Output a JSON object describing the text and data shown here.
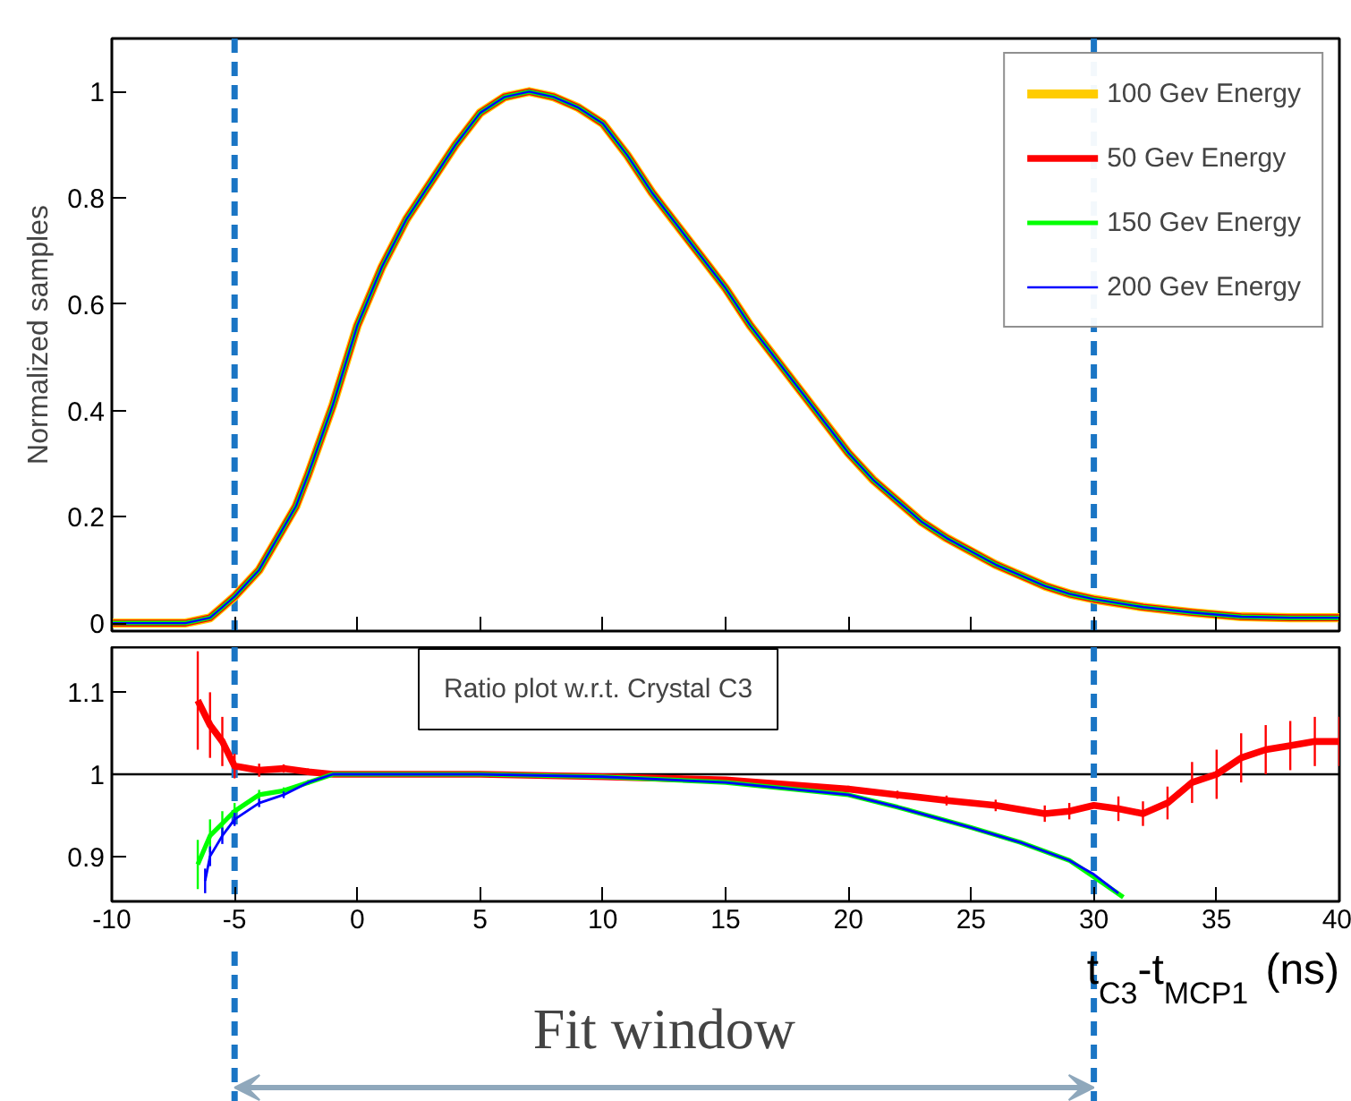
{
  "chart_data": [
    {
      "type": "line",
      "ylabel": "Normalized samples",
      "legend": "top right",
      "tick_labels": "y",
      "grid": false,
      "xlim": [
        -10,
        40
      ],
      "xticks": [
        -10,
        -5,
        0,
        5,
        10,
        15,
        20,
        25,
        30,
        35,
        40
      ],
      "ylim": [
        -0.015,
        1.1
      ],
      "yticks": [
        0,
        0.2,
        0.4,
        0.6,
        0.8,
        1
      ],
      "x": [
        -10,
        -8,
        -7,
        -6,
        -5.5,
        -5,
        -4,
        -3,
        -2.5,
        -2,
        -1,
        0,
        1,
        2,
        3,
        4,
        5,
        6,
        7,
        8,
        9,
        10,
        11,
        12,
        13,
        14,
        15,
        16,
        17,
        18,
        19,
        20,
        21,
        22,
        23,
        24,
        25,
        26,
        27,
        28,
        29,
        30,
        32,
        34,
        36,
        38,
        40
      ],
      "series": [
        {
          "name": "100 Gev Energy",
          "color": "#ffcc00",
          "values": [
            0,
            0,
            0,
            0.01,
            0.03,
            0.05,
            0.1,
            0.18,
            0.22,
            0.28,
            0.41,
            0.56,
            0.67,
            0.76,
            0.83,
            0.9,
            0.96,
            0.99,
            1.0,
            0.99,
            0.97,
            0.94,
            0.88,
            0.81,
            0.75,
            0.69,
            0.63,
            0.56,
            0.5,
            0.44,
            0.38,
            0.32,
            0.27,
            0.23,
            0.19,
            0.16,
            0.135,
            0.11,
            0.09,
            0.07,
            0.055,
            0.045,
            0.03,
            0.02,
            0.012,
            0.01,
            0.01
          ]
        },
        {
          "name": "50 Gev Energy",
          "color": "#ff0000",
          "values": [
            0,
            0,
            0,
            0.01,
            0.03,
            0.05,
            0.1,
            0.18,
            0.22,
            0.28,
            0.41,
            0.56,
            0.67,
            0.76,
            0.83,
            0.9,
            0.96,
            0.99,
            1.0,
            0.99,
            0.97,
            0.94,
            0.88,
            0.81,
            0.75,
            0.69,
            0.63,
            0.56,
            0.5,
            0.44,
            0.38,
            0.32,
            0.27,
            0.23,
            0.19,
            0.16,
            0.135,
            0.11,
            0.09,
            0.07,
            0.055,
            0.045,
            0.03,
            0.02,
            0.012,
            0.01,
            0.01
          ]
        },
        {
          "name": "150 Gev Energy",
          "color": "#00ff00",
          "values": [
            0,
            0,
            0,
            0.01,
            0.03,
            0.05,
            0.1,
            0.18,
            0.22,
            0.28,
            0.41,
            0.56,
            0.67,
            0.76,
            0.83,
            0.9,
            0.96,
            0.99,
            1.0,
            0.99,
            0.97,
            0.94,
            0.88,
            0.81,
            0.75,
            0.69,
            0.63,
            0.56,
            0.5,
            0.44,
            0.38,
            0.32,
            0.27,
            0.23,
            0.19,
            0.16,
            0.135,
            0.11,
            0.09,
            0.07,
            0.055,
            0.045,
            0.03,
            0.02,
            0.012,
            0.01,
            0.01
          ]
        },
        {
          "name": "200 Gev Energy",
          "color": "#0000ff",
          "values": [
            0,
            0,
            0,
            0.01,
            0.03,
            0.05,
            0.1,
            0.18,
            0.22,
            0.28,
            0.41,
            0.56,
            0.67,
            0.76,
            0.83,
            0.9,
            0.96,
            0.99,
            1.0,
            0.99,
            0.97,
            0.94,
            0.88,
            0.81,
            0.75,
            0.69,
            0.63,
            0.56,
            0.5,
            0.44,
            0.38,
            0.32,
            0.27,
            0.23,
            0.19,
            0.16,
            0.135,
            0.11,
            0.09,
            0.07,
            0.055,
            0.045,
            0.03,
            0.02,
            0.012,
            0.01,
            0.01
          ]
        }
      ],
      "ref_lines": [
        {
          "axis": "x",
          "value": -5,
          "color": "#1a75c4",
          "line_style": "dashed"
        },
        {
          "axis": "x",
          "value": 30,
          "color": "#1a75c4",
          "line_style": "dashed"
        }
      ]
    },
    {
      "type": "line",
      "xlabel": "t$_{C3}$-t$_{MCP1}$ (ns)",
      "grid": false,
      "xlim": [
        -10,
        40
      ],
      "xticks": [
        -10,
        -5,
        0,
        5,
        10,
        15,
        20,
        25,
        30,
        35,
        40
      ],
      "ylim": [
        0.845,
        1.155
      ],
      "yticks": [
        0.9,
        1,
        1.1
      ],
      "annotations": [
        "Ratio plot w.r.t. Crystal C3",
        "Fit window"
      ],
      "series": [
        {
          "color": "#ff0000",
          "x": [
            -6.5,
            -6,
            -5.5,
            -5,
            -4,
            -3,
            -2,
            -1,
            0,
            5,
            10,
            15,
            20,
            22,
            24,
            26,
            28,
            29,
            30,
            31,
            32,
            33,
            34,
            35,
            36,
            37,
            38,
            39,
            40
          ],
          "values": [
            1.09,
            1.06,
            1.04,
            1.01,
            1.005,
            1.007,
            1.003,
            1.0,
            1.0,
            1.0,
            0.997,
            0.993,
            0.982,
            0.975,
            0.968,
            0.962,
            0.952,
            0.955,
            0.962,
            0.958,
            0.952,
            0.965,
            0.99,
            1.0,
            1.02,
            1.03,
            1.035,
            1.04,
            1.04
          ],
          "errors": [
            0.06,
            0.04,
            0.03,
            0.015,
            0.008,
            0.005,
            0.004,
            0.003,
            0.002,
            0.002,
            0.002,
            0.003,
            0.004,
            0.005,
            0.006,
            0.007,
            0.01,
            0.01,
            null,
            0.015,
            0.015,
            0.02,
            0.025,
            0.03,
            0.03,
            0.03,
            0.03,
            0.03,
            0.03
          ]
        },
        {
          "color": "#00ff00",
          "x": [
            -6.5,
            -6,
            -5.5,
            -5,
            -4,
            -3,
            -2,
            -1,
            0,
            5,
            10,
            15,
            20,
            22,
            25,
            27,
            29,
            30,
            31.2
          ],
          "values": [
            0.89,
            0.925,
            0.94,
            0.955,
            0.975,
            0.98,
            0.99,
            1.0,
            1.0,
            1.0,
            0.997,
            0.99,
            0.975,
            0.96,
            0.935,
            0.917,
            0.895,
            0.875,
            0.85
          ],
          "errors": [
            0.03,
            0.02,
            0.015,
            0.01,
            0.006,
            0.004,
            0.003,
            null,
            null,
            null,
            null,
            null,
            null,
            null,
            null,
            null,
            null,
            null,
            null
          ]
        },
        {
          "color": "#0000ff",
          "x": [
            -6.2,
            -6,
            -5.5,
            -5,
            -4,
            -3,
            -2,
            -1,
            0,
            5,
            10,
            15,
            20,
            22,
            25,
            27,
            29,
            30,
            31
          ],
          "values": [
            0.87,
            0.9,
            0.925,
            0.945,
            0.965,
            0.975,
            0.99,
            1.0,
            1.0,
            1.0,
            0.997,
            0.99,
            0.975,
            0.96,
            0.935,
            0.917,
            0.895,
            0.878,
            0.855
          ],
          "errors": [
            0.015,
            0.012,
            0.01,
            0.008,
            0.005,
            0.004,
            null,
            null,
            null,
            null,
            null,
            null,
            null,
            null,
            null,
            null,
            null,
            null,
            null
          ]
        }
      ],
      "ref_lines": [
        {
          "axis": "y",
          "value": 1,
          "color": "#000000",
          "line_style": "solid"
        },
        {
          "axis": "x",
          "value": -5,
          "color": "#1a75c4",
          "line_style": "dashed"
        },
        {
          "axis": "x",
          "value": 30,
          "color": "#1a75c4",
          "line_style": "dashed"
        }
      ]
    }
  ]
}
